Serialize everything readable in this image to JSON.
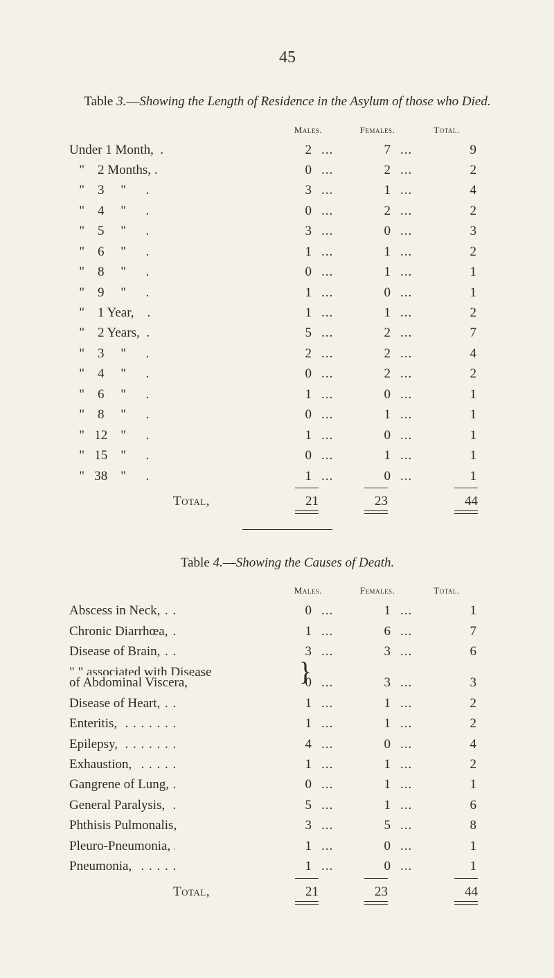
{
  "page_number": "45",
  "table3": {
    "title_prefix": "Table",
    "title_num": "3.",
    "title_dash": "—",
    "title_rest": "Showing the Length of Residence in the Asylum of those who Died.",
    "headers": {
      "males": "Males.",
      "females": "Females.",
      "total": "Total."
    },
    "rows": [
      {
        "label": "Under 1 Month,  .",
        "m": "2",
        "f": "7",
        "t": "9"
      },
      {
        "label": "   \"    2 Months, .",
        "m": "0",
        "f": "2",
        "t": "2"
      },
      {
        "label": "   \"    3     \"      .",
        "m": "3",
        "f": "1",
        "t": "4"
      },
      {
        "label": "   \"    4     \"      .",
        "m": "0",
        "f": "2",
        "t": "2"
      },
      {
        "label": "   \"    5     \"      .",
        "m": "3",
        "f": "0",
        "t": "3"
      },
      {
        "label": "   \"    6     \"      .",
        "m": "1",
        "f": "1",
        "t": "2"
      },
      {
        "label": "   \"    8     \"      .",
        "m": "0",
        "f": "1",
        "t": "1"
      },
      {
        "label": "   \"    9     \"      .",
        "m": "1",
        "f": "0",
        "t": "1"
      },
      {
        "label": "   \"    1 Year,    .",
        "m": "1",
        "f": "1",
        "t": "2"
      },
      {
        "label": "   \"    2 Years,  .",
        "m": "5",
        "f": "2",
        "t": "7"
      },
      {
        "label": "   \"    3     \"      .",
        "m": "2",
        "f": "2",
        "t": "4"
      },
      {
        "label": "   \"    4     \"      .",
        "m": "0",
        "f": "2",
        "t": "2"
      },
      {
        "label": "   \"    6     \"      .",
        "m": "1",
        "f": "0",
        "t": "1"
      },
      {
        "label": "   \"    8     \"      .",
        "m": "0",
        "f": "1",
        "t": "1"
      },
      {
        "label": "   \"   12    \"      .",
        "m": "1",
        "f": "0",
        "t": "1"
      },
      {
        "label": "   \"   15    \"      .",
        "m": "0",
        "f": "1",
        "t": "1"
      },
      {
        "label": "   \"   38    \"      .",
        "m": "1",
        "f": "0",
        "t": "1"
      }
    ],
    "total": {
      "label": "Total,",
      "m": "21",
      "f": "23",
      "t": "44"
    }
  },
  "table4": {
    "title_prefix": "Table",
    "title_num": "4.",
    "title_dash": "—",
    "title_rest": "Showing the Causes of Death.",
    "headers": {
      "males": "Males.",
      "females": "Females.",
      "total": "Total."
    },
    "rows": [
      {
        "label": "Abscess in Neck,",
        "m": "0",
        "f": "1",
        "t": "1"
      },
      {
        "label": "Chronic Diarrhœa,",
        "m": "1",
        "f": "6",
        "t": "7"
      },
      {
        "label": "Disease of Brain,",
        "m": "3",
        "f": "3",
        "t": "6"
      }
    ],
    "assoc_line1": "   \"          \"     associated with Disease",
    "assoc_line2": "     of Abdominal Viscera,",
    "assoc": {
      "m": "0",
      "f": "3",
      "t": "3"
    },
    "rows2": [
      {
        "label": "Disease of Heart,",
        "m": "1",
        "f": "1",
        "t": "2"
      },
      {
        "label": "Enteritis,",
        "m": "1",
        "f": "1",
        "t": "2"
      },
      {
        "label": "Epilepsy,",
        "m": "4",
        "f": "0",
        "t": "4"
      },
      {
        "label": "Exhaustion,",
        "m": "1",
        "f": "1",
        "t": "2"
      },
      {
        "label": "Gangrene of Lung,",
        "m": "0",
        "f": "1",
        "t": "1"
      },
      {
        "label": "General Paralysis,",
        "m": "5",
        "f": "1",
        "t": "6"
      },
      {
        "label": "Phthisis Pulmonalis,",
        "m": "3",
        "f": "5",
        "t": "8"
      },
      {
        "label": "Pleuro-Pneumonia,",
        "m": "1",
        "f": "0",
        "t": "1"
      },
      {
        "label": "Pneumonia,",
        "m": "1",
        "f": "0",
        "t": "1"
      }
    ],
    "total": {
      "label": "Total,",
      "m": "21",
      "f": "23",
      "t": "44"
    }
  },
  "dots": "..."
}
